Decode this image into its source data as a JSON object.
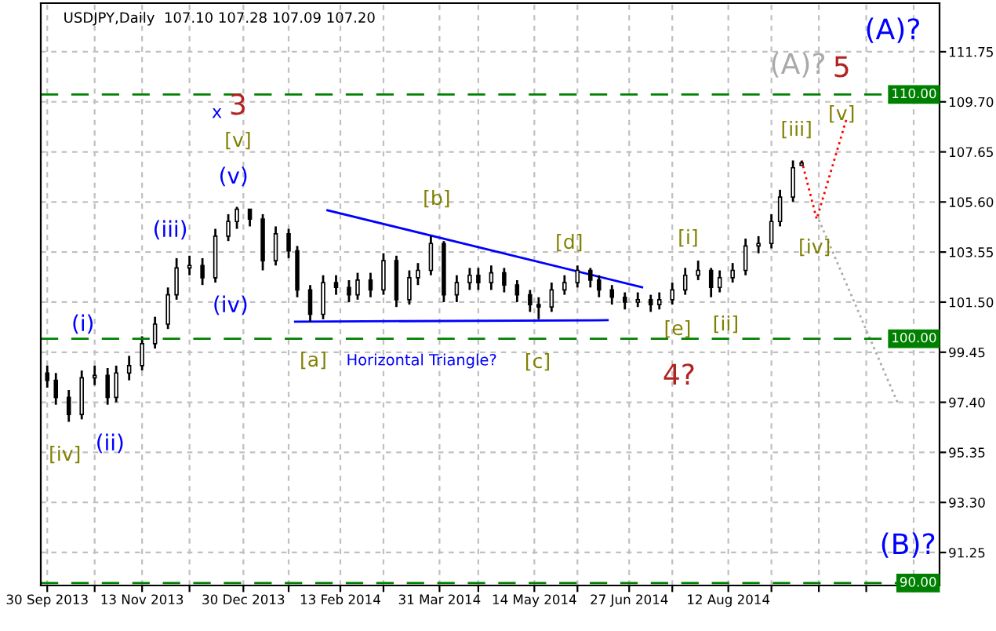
{
  "chart_data": {
    "type": "candlestick",
    "title": "USDJPY,Daily  107.10 107.28 107.09 107.20",
    "color": "#000000",
    "x": [
      "2013-09-30",
      "2013-10-04",
      "2013-10-10",
      "2013-10-16",
      "2013-10-22",
      "2013-10-28",
      "2013-11-01",
      "2013-11-07",
      "2013-11-13",
      "2013-11-19",
      "2013-11-25",
      "2013-11-29",
      "2013-12-05",
      "2013-12-11",
      "2013-12-17",
      "2013-12-23",
      "2013-12-27",
      "2014-01-02",
      "2014-01-08",
      "2014-01-14",
      "2014-01-20",
      "2014-01-24",
      "2014-01-30",
      "2014-02-05",
      "2014-02-11",
      "2014-02-17",
      "2014-02-21",
      "2014-02-27",
      "2014-03-05",
      "2014-03-11",
      "2014-03-17",
      "2014-03-21",
      "2014-03-27",
      "2014-04-02",
      "2014-04-08",
      "2014-04-14",
      "2014-04-18",
      "2014-04-24",
      "2014-04-30",
      "2014-05-06",
      "2014-05-12",
      "2014-05-16",
      "2014-05-22",
      "2014-05-28",
      "2014-06-03",
      "2014-06-09",
      "2014-06-13",
      "2014-06-19",
      "2014-06-25",
      "2014-07-01",
      "2014-07-07",
      "2014-07-11",
      "2014-07-17",
      "2014-07-23",
      "2014-07-29",
      "2014-08-04",
      "2014-08-08",
      "2014-08-14",
      "2014-08-20",
      "2014-08-26",
      "2014-09-01",
      "2014-09-05",
      "2014-09-11",
      "2014-09-15"
    ],
    "ohlc": [
      [
        98.6,
        98.9,
        98.0,
        98.3
      ],
      [
        98.3,
        98.6,
        97.3,
        97.6
      ],
      [
        97.6,
        97.9,
        96.6,
        96.9
      ],
      [
        96.9,
        98.7,
        96.7,
        98.4
      ],
      [
        98.4,
        98.9,
        98.1,
        98.5
      ],
      [
        98.5,
        98.8,
        97.3,
        97.6
      ],
      [
        97.6,
        98.9,
        97.4,
        98.6
      ],
      [
        98.6,
        99.3,
        98.3,
        98.9
      ],
      [
        98.9,
        100.1,
        98.7,
        99.8
      ],
      [
        99.8,
        100.9,
        99.6,
        100.6
      ],
      [
        100.6,
        102.1,
        100.4,
        101.8
      ],
      [
        101.8,
        103.3,
        101.6,
        102.9
      ],
      [
        102.9,
        103.4,
        102.6,
        103.0
      ],
      [
        103.0,
        103.3,
        102.2,
        102.5
      ],
      [
        102.5,
        104.5,
        102.3,
        104.2
      ],
      [
        104.2,
        105.1,
        104.0,
        104.8
      ],
      [
        104.8,
        105.4,
        104.5,
        105.3
      ],
      [
        105.3,
        105.3,
        104.6,
        104.9
      ],
      [
        104.9,
        105.1,
        102.8,
        103.2
      ],
      [
        103.2,
        104.6,
        103.0,
        104.3
      ],
      [
        104.3,
        104.5,
        103.3,
        103.6
      ],
      [
        103.6,
        103.8,
        101.7,
        102.0
      ],
      [
        102.0,
        102.2,
        100.7,
        101.0
      ],
      [
        101.0,
        102.6,
        100.8,
        102.3
      ],
      [
        102.3,
        102.6,
        101.8,
        102.1
      ],
      [
        102.1,
        102.4,
        101.5,
        101.8
      ],
      [
        101.8,
        102.7,
        101.6,
        102.4
      ],
      [
        102.4,
        102.7,
        101.7,
        102.0
      ],
      [
        102.0,
        103.5,
        101.8,
        103.2
      ],
      [
        103.2,
        103.4,
        101.3,
        101.6
      ],
      [
        101.6,
        102.8,
        101.4,
        102.5
      ],
      [
        102.5,
        103.1,
        102.2,
        102.8
      ],
      [
        102.8,
        104.2,
        102.6,
        103.9
      ],
      [
        103.9,
        104.0,
        101.5,
        101.8
      ],
      [
        101.8,
        102.6,
        101.5,
        102.3
      ],
      [
        102.3,
        102.9,
        102.0,
        102.6
      ],
      [
        102.6,
        102.9,
        102.0,
        102.3
      ],
      [
        102.3,
        103.0,
        102.0,
        102.7
      ],
      [
        102.7,
        102.9,
        101.9,
        102.2
      ],
      [
        102.2,
        102.4,
        101.5,
        101.8
      ],
      [
        101.8,
        102.0,
        101.1,
        101.4
      ],
      [
        101.4,
        101.7,
        100.8,
        101.3
      ],
      [
        101.3,
        102.3,
        101.1,
        102.0
      ],
      [
        102.0,
        102.6,
        101.8,
        102.3
      ],
      [
        102.3,
        103.0,
        102.1,
        102.8
      ],
      [
        102.8,
        102.9,
        102.1,
        102.4
      ],
      [
        102.4,
        102.6,
        101.7,
        102.0
      ],
      [
        102.0,
        102.2,
        101.4,
        101.7
      ],
      [
        101.7,
        101.9,
        101.2,
        101.5
      ],
      [
        101.5,
        101.9,
        101.3,
        101.6
      ],
      [
        101.6,
        101.8,
        101.1,
        101.4
      ],
      [
        101.4,
        101.9,
        101.2,
        101.6
      ],
      [
        101.6,
        102.3,
        101.4,
        102.0
      ],
      [
        102.0,
        102.9,
        101.8,
        102.6
      ],
      [
        102.6,
        103.2,
        102.4,
        102.8
      ],
      [
        102.8,
        102.9,
        101.7,
        102.1
      ],
      [
        102.1,
        102.8,
        101.9,
        102.5
      ],
      [
        102.5,
        103.1,
        102.3,
        102.8
      ],
      [
        102.8,
        104.1,
        102.6,
        103.8
      ],
      [
        103.8,
        104.2,
        103.5,
        103.9
      ],
      [
        103.9,
        105.1,
        103.7,
        104.8
      ],
      [
        104.8,
        106.1,
        104.6,
        105.8
      ],
      [
        105.8,
        107.3,
        105.6,
        107.0
      ],
      [
        107.1,
        107.28,
        107.09,
        107.2
      ]
    ],
    "series": [
      {
        "type": "line",
        "color": "#0000ff",
        "line_style": "solid",
        "x": [
          "2014-02-07",
          "2014-07-03"
        ],
        "values": [
          105.26,
          102.11
        ]
      },
      {
        "type": "line",
        "color": "#0000ff",
        "line_style": "solid",
        "x": [
          "2014-01-23",
          "2014-06-17"
        ],
        "values": [
          100.7,
          100.76
        ]
      },
      {
        "type": "line",
        "color": "#ff0000",
        "line_style": "dotted",
        "x": [
          "2014-09-15",
          "2014-09-22",
          "2014-10-06"
        ],
        "values": [
          107.3,
          104.9,
          109.05
        ]
      },
      {
        "type": "line",
        "color": "#aaaaaa",
        "line_style": "dotted",
        "x": [
          "2014-09-23",
          "2014-10-30"
        ],
        "values": [
          104.87,
          97.29
        ]
      }
    ],
    "xlim": [
      "2013-09-27",
      "2014-11-18"
    ],
    "xticks": [
      {
        "value": "2013-09-30",
        "label": "30 Sep 2013"
      },
      {
        "value": "2013-10-22",
        "label": null
      },
      {
        "value": "2013-11-13",
        "label": "13 Nov 2013"
      },
      {
        "value": "2013-12-05",
        "label": null
      },
      {
        "value": "2013-12-30",
        "label": "30 Dec 2013"
      },
      {
        "value": "2014-01-20",
        "label": null
      },
      {
        "value": "2014-02-13",
        "label": "13 Feb 2014"
      },
      {
        "value": "2014-03-05",
        "label": null
      },
      {
        "value": "2014-03-31",
        "label": "31 Mar 2014"
      },
      {
        "value": "2014-04-18",
        "label": null
      },
      {
        "value": "2014-05-14",
        "label": "14 May 2014"
      },
      {
        "value": "2014-06-03",
        "label": null
      },
      {
        "value": "2014-06-27",
        "label": "27 Jun 2014"
      },
      {
        "value": "2014-07-17",
        "label": null
      },
      {
        "value": "2014-08-12",
        "label": "12 Aug 2014"
      },
      {
        "value": "2014-09-01",
        "label": null
      },
      {
        "value": "2014-09-23",
        "label": null
      },
      {
        "value": "2014-10-15",
        "label": null
      },
      {
        "value": "2014-11-06",
        "label": null
      }
    ],
    "ylim": [
      89.9,
      113.74
    ],
    "yticks": [
      {
        "value": 91.25,
        "label": "91.25"
      },
      {
        "value": 93.3,
        "label": "93.30"
      },
      {
        "value": 95.35,
        "label": "95.35"
      },
      {
        "value": 97.4,
        "label": "97.40"
      },
      {
        "value": 99.45,
        "label": "99.45"
      },
      {
        "value": 101.5,
        "label": "101.50"
      },
      {
        "value": 103.55,
        "label": "103.55"
      },
      {
        "value": 105.6,
        "label": "105.60"
      },
      {
        "value": 107.65,
        "label": "107.65"
      },
      {
        "value": 109.7,
        "label": "109.70"
      },
      {
        "value": 111.75,
        "label": "111.75"
      }
    ],
    "grid": true,
    "ref_lines": [
      {
        "axis": "y",
        "value": 110,
        "label": "110.00",
        "color": "#008000",
        "line_style": "dashed"
      },
      {
        "axis": "y",
        "value": 100,
        "label": "100.00",
        "color": "#008000",
        "line_style": "dashed"
      },
      {
        "axis": "y",
        "value": 90,
        "label": "90.00",
        "color": "#008000",
        "line_style": "dashed"
      }
    ],
    "annotations": [
      "x",
      "3",
      "[v]",
      "(v)",
      "(iii)",
      "(iv)",
      "(i)",
      "(ii)",
      "[iv]",
      "[a]",
      "[b]",
      "[c]",
      "[d]",
      "[e]",
      "4?",
      "[i]",
      "[ii]",
      "[iii]",
      "[iv]",
      "[v]",
      "(A)?",
      "5",
      "(A)?",
      "(B)?",
      "Horizontal Triangle?"
    ]
  }
}
